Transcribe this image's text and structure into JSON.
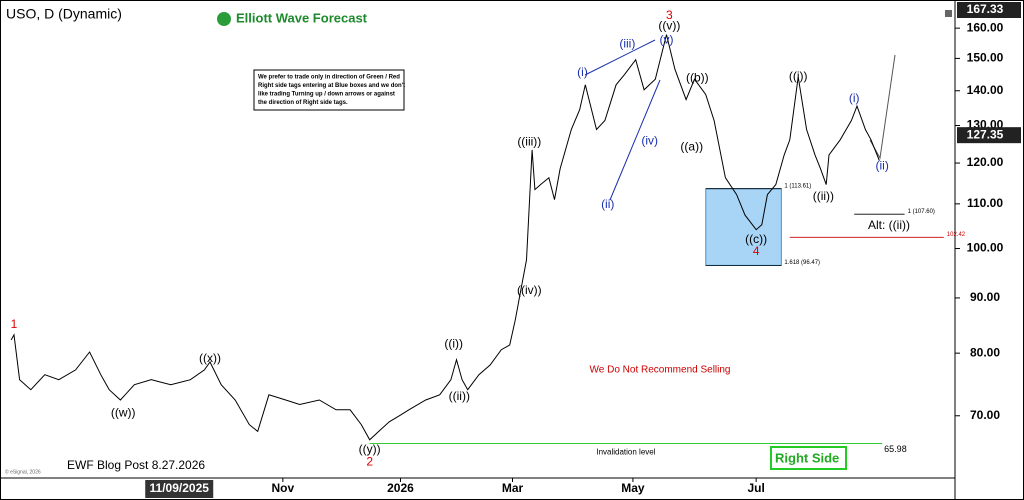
{
  "chart_data": {
    "type": "line",
    "title": "USO, D (Dynamic)",
    "logo": "Elliott Wave Forecast",
    "note": [
      "We prefer to trade only in direction of Green / Red",
      "Right side tags entering at Blue boxes and we don't",
      "like trading Turning up / down arrows or against",
      "the direction of Right side tags."
    ],
    "warning": "We Do Not Recommend Selling",
    "footer": "EWF Blog Post 8.27.2026",
    "watermark": "© eSignal, 2026",
    "right_side": "Right Side",
    "alt_label": "Alt: ((ii))",
    "log_scale": true,
    "color": "#000000",
    "xlim": [
      0,
      341
    ],
    "ylim": [
      61.3,
      169.9
    ],
    "yticks": [
      {
        "value": 70,
        "label": "70.00"
      },
      {
        "value": 80,
        "label": "80.00"
      },
      {
        "value": 90,
        "label": "90.00"
      },
      {
        "value": 100,
        "label": "100.00"
      },
      {
        "value": 110,
        "label": "110.00"
      },
      {
        "value": 120,
        "label": "120.00"
      },
      {
        "value": 130,
        "label": "130.00"
      },
      {
        "value": 140,
        "label": "140.00"
      },
      {
        "value": 150,
        "label": "150.00"
      },
      {
        "value": 160,
        "label": "160.00"
      }
    ],
    "xticks": [
      {
        "value": 101,
        "label": "Nov"
      },
      {
        "value": 143,
        "label": "2026"
      },
      {
        "value": 183,
        "label": "Mar"
      },
      {
        "value": 226,
        "label": "May"
      },
      {
        "value": 270,
        "label": "Jul"
      }
    ],
    "crosshair_date": {
      "value": 64,
      "label": "11/09/2025"
    },
    "last_price": 127.35,
    "high_price": 167.33,
    "x": [
      4,
      5,
      7,
      11,
      16,
      21,
      27,
      32,
      36,
      39,
      43,
      48,
      54,
      61,
      68,
      73,
      75,
      79,
      84,
      89,
      92,
      96,
      102,
      107,
      114,
      120,
      125,
      129,
      132,
      136,
      139,
      143,
      146,
      152,
      157,
      161,
      163,
      165,
      167,
      171,
      175,
      179,
      182,
      184,
      186,
      188,
      190,
      191,
      193,
      196,
      198,
      200,
      204,
      207,
      209,
      213,
      216,
      220,
      223,
      227,
      230,
      234,
      238,
      241,
      245,
      248,
      252,
      255,
      259,
      263,
      266,
      270,
      272,
      274,
      277,
      280,
      282,
      285,
      288,
      291,
      293,
      295,
      296,
      300,
      304,
      306,
      309,
      311,
      314
    ],
    "values": [
      82.3,
      83.2,
      75.6,
      74.0,
      76.4,
      75.6,
      77.2,
      80.2,
      76.4,
      74.0,
      72.4,
      74.8,
      75.6,
      74.8,
      75.6,
      77.2,
      78.5,
      74.8,
      72.4,
      68.7,
      67.7,
      73.2,
      72.4,
      71.7,
      72.4,
      70.9,
      70.9,
      68.7,
      66.5,
      68.0,
      69.1,
      70.1,
      70.9,
      72.4,
      73.2,
      75.6,
      78.9,
      75.6,
      74.0,
      76.4,
      78.0,
      80.6,
      81.4,
      85.9,
      91.6,
      97.6,
      123.4,
      113.4,
      114.6,
      116.3,
      111.0,
      118.5,
      128.9,
      134.5,
      141.8,
      128.9,
      131.4,
      141.8,
      144.9,
      149.6,
      140.3,
      143.5,
      157.8,
      146.6,
      137.4,
      143.5,
      138.9,
      131.4,
      116.3,
      112.2,
      107.4,
      104.1,
      105.2,
      112.2,
      114.6,
      122.1,
      126.1,
      144.2,
      128.9,
      122.1,
      118.5,
      114.6,
      122.1,
      126.1,
      131.4,
      135.5,
      128.9,
      126.1,
      120.6
    ],
    "target_box": {
      "from": 113.61,
      "to": 96.47,
      "x": [
        252,
        279
      ]
    },
    "levels": [
      {
        "label": "1 (113.61)",
        "value": 113.61,
        "x": [
          252,
          279
        ],
        "color": "#000000"
      },
      {
        "label": "1.618 (96.47)",
        "value": 96.47,
        "x": [
          252,
          279
        ],
        "color": "#000000"
      },
      {
        "label": "1 (107.60)",
        "value": 107.6,
        "x": [
          305,
          323
        ],
        "color": "#000000"
      },
      {
        "label": "102.42",
        "value": 102.42,
        "x": [
          282,
          337
        ],
        "color": "#cc0000"
      }
    ],
    "invalidation": {
      "label": "Invalidation level",
      "value": 65.98,
      "x": [
        132,
        315
      ],
      "color": "#33cc33"
    },
    "annotations": [
      {
        "text": "1",
        "x": 5,
        "y": 85.0,
        "color": "#dd0000"
      },
      {
        "text": "((w))",
        "x": 44,
        "y": 70.4,
        "color": "#000000"
      },
      {
        "text": "((x))",
        "x": 75,
        "y": 79.0,
        "color": "#000000"
      },
      {
        "text": "((y))",
        "x": 132,
        "y": 65.1,
        "color": "#000000"
      },
      {
        "text": "2",
        "x": 132,
        "y": 63.4,
        "color": "#dd0000"
      },
      {
        "text": "((i))",
        "x": 162,
        "y": 81.5,
        "color": "#000000"
      },
      {
        "text": "((ii))",
        "x": 164,
        "y": 72.9,
        "color": "#000000"
      },
      {
        "text": "((iii))",
        "x": 189,
        "y": 125.4,
        "color": "#000000"
      },
      {
        "text": "((iv))",
        "x": 189,
        "y": 91.4,
        "color": "#000000"
      },
      {
        "text": "(i)",
        "x": 208,
        "y": 145.5,
        "color": "#1a2fb0"
      },
      {
        "text": "(ii)",
        "x": 217,
        "y": 109.8,
        "color": "#1a2fb0"
      },
      {
        "text": "(iii)",
        "x": 224,
        "y": 154.6,
        "color": "#1a2fb0"
      },
      {
        "text": "(iv)",
        "x": 232,
        "y": 125.7,
        "color": "#1a2fb0"
      },
      {
        "text": "(v)",
        "x": 238,
        "y": 155.9,
        "color": "#1a2fb0"
      },
      {
        "text": "((v))",
        "x": 239,
        "y": 160.6,
        "color": "#000000"
      },
      {
        "text": "3",
        "x": 239,
        "y": 164.3,
        "color": "#dd0000"
      },
      {
        "text": "((b))",
        "x": 249,
        "y": 143.8,
        "color": "#000000"
      },
      {
        "text": "((a))",
        "x": 247,
        "y": 124.1,
        "color": "#000000"
      },
      {
        "text": "((c))",
        "x": 270,
        "y": 101.9,
        "color": "#000000"
      },
      {
        "text": "4",
        "x": 270,
        "y": 99.3,
        "color": "#dd0000"
      },
      {
        "text": "((i))",
        "x": 285,
        "y": 144.2,
        "color": "#000000"
      },
      {
        "text": "((ii))",
        "x": 294,
        "y": 111.6,
        "color": "#000000"
      },
      {
        "text": "(i)",
        "x": 305,
        "y": 137.6,
        "color": "#1a2fb0"
      },
      {
        "text": "(ii)",
        "x": 315,
        "y": 119.1,
        "color": "#1a2fb0"
      }
    ]
  }
}
